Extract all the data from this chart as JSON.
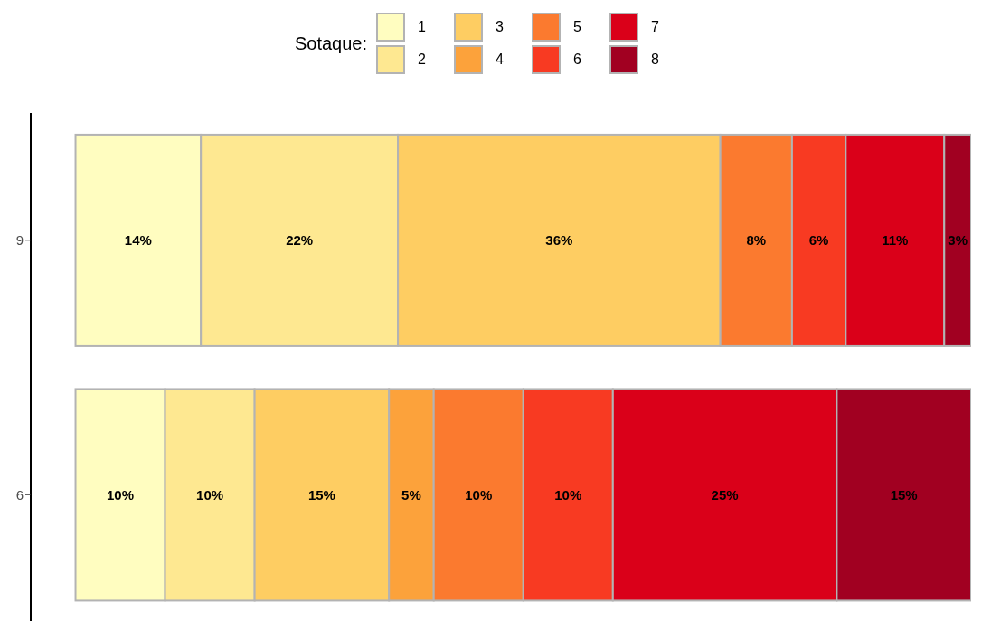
{
  "chart_data": {
    "type": "bar",
    "orientation": "horizontal",
    "stacked": true,
    "categories": [
      "9",
      "6"
    ],
    "legend_title": "Sotaque:",
    "legend": "top",
    "tick_labels": "y",
    "grid": false,
    "xlim": [
      -5,
      100
    ],
    "series": [
      {
        "name": "1",
        "color": "#fffdc0",
        "values": [
          14,
          10
        ],
        "value_labels": [
          "14%",
          "10%"
        ]
      },
      {
        "name": "2",
        "color": "#fee891",
        "values": [
          22,
          10
        ],
        "value_labels": [
          "22%",
          "10%"
        ]
      },
      {
        "name": "3",
        "color": "#fecd62",
        "values": [
          36,
          15
        ],
        "value_labels": [
          "36%",
          "15%"
        ]
      },
      {
        "name": "4",
        "color": "#fca23b",
        "values": [
          null,
          5
        ],
        "value_labels": [
          null,
          "5%"
        ]
      },
      {
        "name": "5",
        "color": "#fb7a2f",
        "values": [
          8,
          10
        ],
        "value_labels": [
          "8%",
          "10%"
        ]
      },
      {
        "name": "6",
        "color": "#f83a22",
        "values": [
          6,
          10
        ],
        "value_labels": [
          "6%",
          "10%"
        ]
      },
      {
        "name": "7",
        "color": "#da0019",
        "values": [
          11,
          25
        ],
        "value_labels": [
          "11%",
          "25%"
        ]
      },
      {
        "name": "8",
        "color": "#a10021",
        "values": [
          3,
          15
        ],
        "value_labels": [
          "3%",
          "15%"
        ]
      }
    ]
  }
}
